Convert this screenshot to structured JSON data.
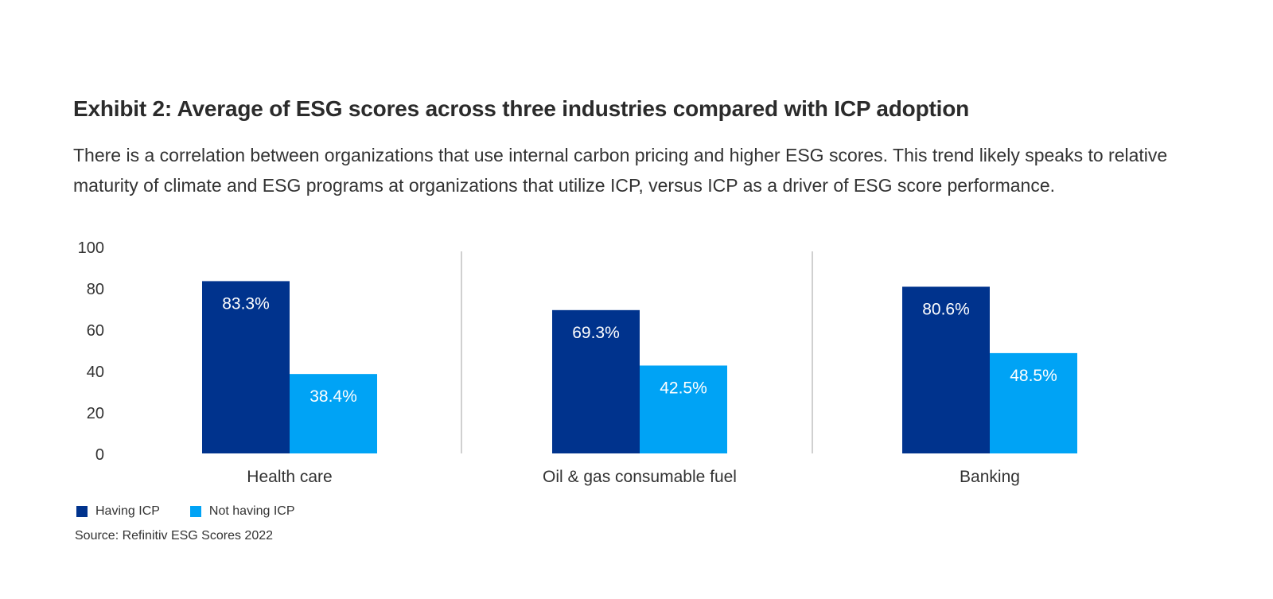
{
  "chart_data": {
    "type": "bar",
    "title": "Exhibit 2: Average of ESG scores across three industries compared with ICP adoption",
    "subtitle": "There is a correlation between organizations that use internal carbon pricing and higher ESG scores. This trend likely speaks to relative maturity of climate and ESG programs at organizations that utilize ICP, versus ICP as a driver of ESG score performance.",
    "categories": [
      "Health care",
      "Oil & gas consumable fuel",
      "Banking"
    ],
    "series": [
      {
        "name": "Having ICP",
        "values": [
          83.3,
          69.3,
          80.6
        ],
        "labels": [
          "83.3%",
          "69.3%",
          "80.6%"
        ],
        "color": "#00338d"
      },
      {
        "name": "Not having ICP",
        "values": [
          38.4,
          42.5,
          48.5
        ],
        "labels": [
          "38.4%",
          "42.5%",
          "48.5%"
        ],
        "color": "#00a3f5"
      }
    ],
    "ylim": [
      0,
      100
    ],
    "yticks": [
      "0",
      "20",
      "40",
      "60",
      "80",
      "100"
    ],
    "grid": false,
    "legend": "bottom-left",
    "source": "Source: Refinitiv ESG Scores 2022"
  }
}
